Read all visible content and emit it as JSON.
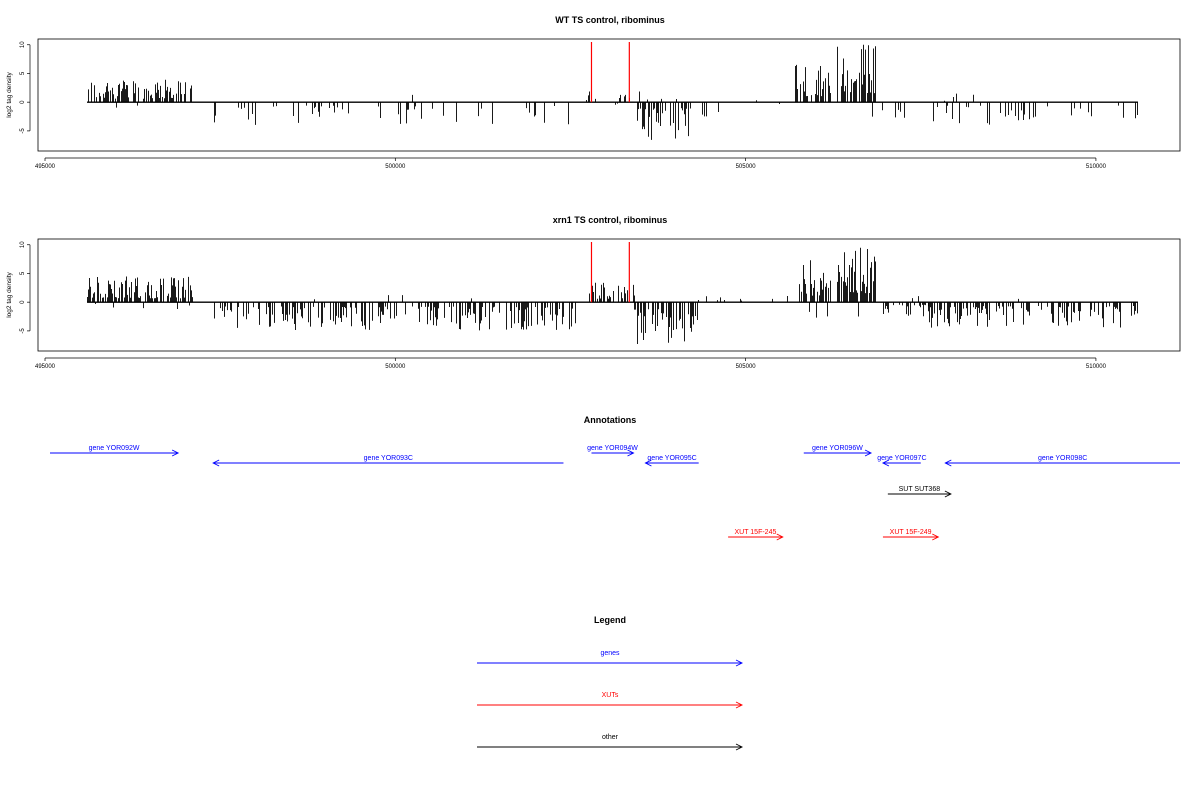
{
  "chart_data": [
    {
      "type": "bar",
      "title": "WT TS control, ribominus",
      "ylabel": "log2 tag density",
      "xlim": [
        494900,
        511200
      ],
      "ylim": [
        -8.5,
        11
      ],
      "xticks": [
        495000,
        500000,
        505000,
        510000
      ],
      "yticks": [
        -5,
        0,
        5,
        10
      ],
      "series": [
        {
          "segments": [
            {
              "x0": 495600,
              "x1": 497100,
              "density": 0.55,
              "sign": 1,
              "max": 4
            },
            {
              "x0": 497400,
              "x1": 502600,
              "density": 0.12,
              "sign": -1,
              "max": 4
            },
            {
              "x0": 502700,
              "x1": 503400,
              "density": 0.12,
              "sign": 1,
              "max": 2.5
            },
            {
              "x0": 503400,
              "x1": 504200,
              "density": 0.5,
              "sign": -1,
              "max": 7
            },
            {
              "x0": 504200,
              "x1": 504600,
              "density": 0.25,
              "sign": -1,
              "max": 5
            },
            {
              "x0": 504900,
              "x1": 505700,
              "density": 0.04,
              "sign": 1,
              "max": 1.5
            },
            {
              "x0": 505700,
              "x1": 506200,
              "density": 0.5,
              "sign": 1,
              "max": 7
            },
            {
              "x0": 506300,
              "x1": 506850,
              "density": 0.8,
              "sign": 1,
              "max": 10.5
            },
            {
              "x0": 506900,
              "x1": 507300,
              "density": 0.08,
              "sign": -1,
              "max": 3
            },
            {
              "x0": 507500,
              "x1": 510600,
              "density": 0.18,
              "sign": -1,
              "max": 4
            }
          ]
        }
      ],
      "markers": [
        502800,
        503340
      ]
    },
    {
      "type": "bar",
      "title": "xrn1 TS control, ribominus",
      "ylabel": "log2 tag density",
      "xlim": [
        494900,
        511200
      ],
      "ylim": [
        -8.5,
        11
      ],
      "xticks": [
        495000,
        500000,
        505000,
        510000
      ],
      "yticks": [
        -5,
        0,
        5,
        10
      ],
      "series": [
        {
          "segments": [
            {
              "x0": 495600,
              "x1": 497100,
              "density": 0.7,
              "sign": 1,
              "max": 4.5
            },
            {
              "x0": 497400,
              "x1": 502600,
              "density": 0.45,
              "sign": -1,
              "max": 5
            },
            {
              "x0": 502700,
              "x1": 503400,
              "density": 0.5,
              "sign": 1,
              "max": 3.5
            },
            {
              "x0": 503400,
              "x1": 504300,
              "density": 0.6,
              "sign": -1,
              "max": 7.5
            },
            {
              "x0": 504300,
              "x1": 505700,
              "density": 0.1,
              "sign": 1,
              "max": 1.5
            },
            {
              "x0": 505700,
              "x1": 506200,
              "density": 0.6,
              "sign": 1,
              "max": 7.5
            },
            {
              "x0": 506300,
              "x1": 506850,
              "density": 0.85,
              "sign": 1,
              "max": 10.5
            },
            {
              "x0": 506900,
              "x1": 507600,
              "density": 0.35,
              "sign": -1,
              "max": 3
            },
            {
              "x0": 507600,
              "x1": 510600,
              "density": 0.45,
              "sign": -1,
              "max": 4.5
            }
          ]
        }
      ],
      "markers": [
        502800,
        503340
      ]
    }
  ],
  "annotations": {
    "title": "Annotations",
    "items": [
      {
        "label": "gene YOR092W",
        "x0": 495050,
        "x1": 496900,
        "row": 0,
        "type": "gene",
        "dir": "right"
      },
      {
        "label": "gene YOR093C",
        "x0": 497400,
        "x1": 502400,
        "row": 1,
        "type": "gene",
        "dir": "left"
      },
      {
        "label": "gene YOR094W",
        "x0": 502800,
        "x1": 503400,
        "row": 0,
        "type": "gene",
        "dir": "right"
      },
      {
        "label": "gene YOR095C",
        "x0": 503570,
        "x1": 504330,
        "row": 1,
        "type": "gene",
        "dir": "left"
      },
      {
        "label": "gene YOR096W",
        "x0": 505830,
        "x1": 506790,
        "row": 0,
        "type": "gene",
        "dir": "right"
      },
      {
        "label": "gene YOR097C",
        "x0": 506960,
        "x1": 507500,
        "row": 1,
        "type": "gene",
        "dir": "left"
      },
      {
        "label": "gene YOR098C",
        "x0": 507850,
        "x1": 511200,
        "row": 1,
        "type": "gene",
        "dir": "left"
      },
      {
        "label": "SUT SUT368",
        "x0": 507030,
        "x1": 507930,
        "row": 2,
        "type": "other",
        "dir": "right"
      },
      {
        "label": "XUT 15F-245",
        "x0": 504750,
        "x1": 505530,
        "row": 3,
        "type": "xut",
        "dir": "right"
      },
      {
        "label": "XUT 15F-249",
        "x0": 506960,
        "x1": 507750,
        "row": 3,
        "type": "xut",
        "dir": "right"
      }
    ]
  },
  "legend": {
    "title": "Legend",
    "items": [
      {
        "label": "genes",
        "type": "gene"
      },
      {
        "label": "XUTs",
        "type": "xut"
      },
      {
        "label": "other",
        "type": "other"
      }
    ]
  },
  "colors": {
    "gene": "#0000ff",
    "xut": "#ff0000",
    "other": "#000000",
    "marker": "#ff0000",
    "bars": "#000000"
  }
}
